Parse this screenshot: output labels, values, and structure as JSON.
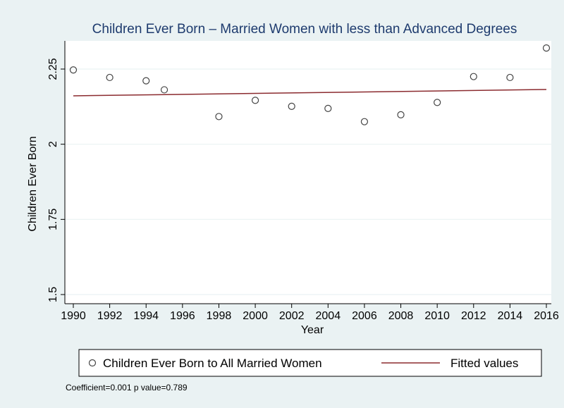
{
  "chart_data": {
    "type": "scatter",
    "title": "Children Ever Born – Married Women with less than Advanced Degrees",
    "xlabel": "Year",
    "ylabel": "Children Ever Born",
    "xlim": [
      1990,
      2016
    ],
    "ylim": [
      1.5,
      2.25
    ],
    "x_ticks": [
      1990,
      1992,
      1994,
      1996,
      1998,
      2000,
      2002,
      2004,
      2006,
      2008,
      2010,
      2012,
      2014,
      2016
    ],
    "y_ticks": [
      1.5,
      1.75,
      2,
      2.25
    ],
    "y_tick_labels": [
      "1.5",
      "1.75",
      "2",
      "2.25"
    ],
    "grid": true,
    "legend_position": "bottom",
    "series": [
      {
        "name": "Children Ever Born to All Married Women",
        "kind": "scatter",
        "marker": "hollow-circle",
        "color": "#444444",
        "points": [
          {
            "x": 1990,
            "y": 2.247
          },
          {
            "x": 1992,
            "y": 2.222
          },
          {
            "x": 1994,
            "y": 2.211
          },
          {
            "x": 1995,
            "y": 2.181
          },
          {
            "x": 1998,
            "y": 2.092
          },
          {
            "x": 2000,
            "y": 2.146
          },
          {
            "x": 2002,
            "y": 2.126
          },
          {
            "x": 2004,
            "y": 2.119
          },
          {
            "x": 2006,
            "y": 2.075
          },
          {
            "x": 2008,
            "y": 2.098
          },
          {
            "x": 2010,
            "y": 2.139
          },
          {
            "x": 2012,
            "y": 2.225
          },
          {
            "x": 2014,
            "y": 2.222
          },
          {
            "x": 2016,
            "y": 2.32
          }
        ]
      },
      {
        "name": "Fitted values",
        "kind": "line",
        "color": "#8b2b2f",
        "points": [
          {
            "x": 1990,
            "y": 2.161
          },
          {
            "x": 2016,
            "y": 2.182
          }
        ]
      }
    ],
    "note": "Coefficient=0.001 p value=0.789"
  }
}
